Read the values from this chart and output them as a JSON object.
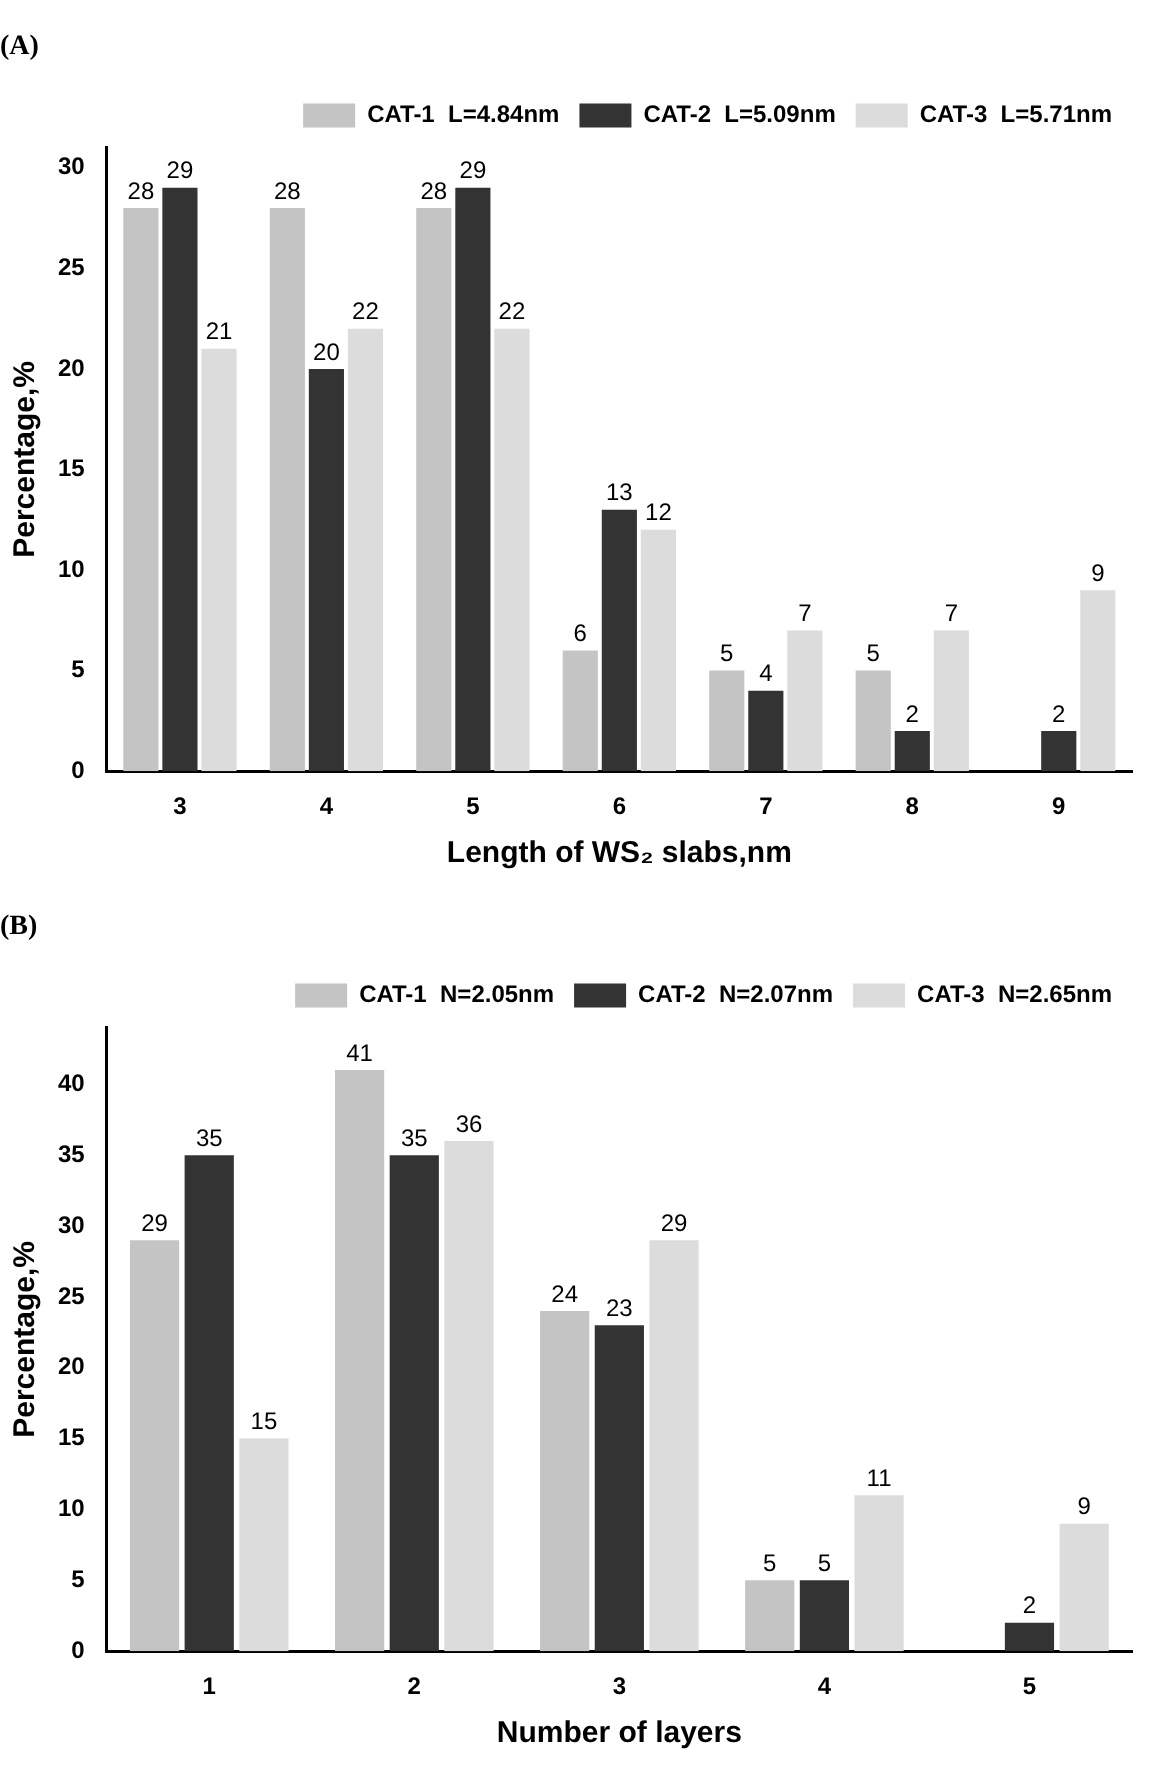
{
  "chart_data": [
    {
      "type": "bar",
      "title": "(A)",
      "xlabel": "Length of WS₂ slabs,nm",
      "ylabel": "Percentage,%",
      "categories": [
        "3",
        "4",
        "5",
        "6",
        "7",
        "8",
        "9"
      ],
      "series": [
        {
          "name": "CAT-1  L=4.84nm",
          "color": "#c4c4c4",
          "values": [
            28,
            28,
            28,
            6,
            5,
            5,
            null
          ]
        },
        {
          "name": "CAT-2  L=5.09nm",
          "color": "#333333",
          "values": [
            29,
            20,
            29,
            13,
            4,
            2,
            2
          ]
        },
        {
          "name": "CAT-3  L=5.71nm",
          "color": "#dcdcdc",
          "values": [
            21,
            22,
            22,
            12,
            7,
            7,
            9
          ]
        }
      ],
      "ylim": [
        0,
        31
      ],
      "yticks": [
        0,
        5,
        10,
        15,
        20,
        25,
        30
      ],
      "grid": false,
      "legend": "top right",
      "data_labels": true
    },
    {
      "type": "bar",
      "title": "(B)",
      "xlabel": "Number of layers",
      "ylabel": "Percentage,%",
      "categories": [
        "1",
        "2",
        "3",
        "4",
        "5"
      ],
      "series": [
        {
          "name": "CAT-1  N=2.05nm",
          "color": "#c4c4c4",
          "values": [
            29,
            41,
            24,
            5,
            null
          ]
        },
        {
          "name": "CAT-2  N=2.07nm",
          "color": "#333333",
          "values": [
            35,
            35,
            23,
            5,
            2
          ]
        },
        {
          "name": "CAT-3  N=2.65nm",
          "color": "#dcdcdc",
          "values": [
            15,
            36,
            29,
            11,
            9
          ]
        }
      ],
      "ylim": [
        0,
        44
      ],
      "yticks": [
        0,
        5,
        10,
        15,
        20,
        25,
        30,
        35,
        40
      ],
      "grid": false,
      "legend": "top right",
      "data_labels": true
    }
  ]
}
